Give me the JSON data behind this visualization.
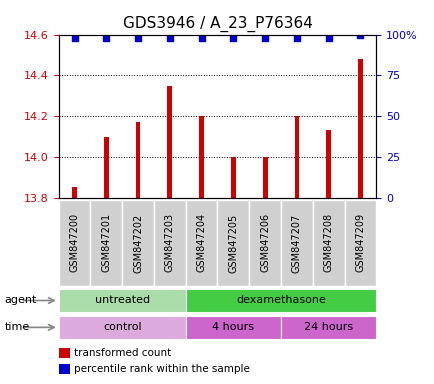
{
  "title": "GDS3946 / A_23_P76364",
  "samples": [
    "GSM847200",
    "GSM847201",
    "GSM847202",
    "GSM847203",
    "GSM847204",
    "GSM847205",
    "GSM847206",
    "GSM847207",
    "GSM847208",
    "GSM847209"
  ],
  "bar_values": [
    13.855,
    14.1,
    14.17,
    14.35,
    14.2,
    14.0,
    14.0,
    14.2,
    14.13,
    14.48
  ],
  "percentile_y": [
    98,
    98,
    98,
    98,
    98,
    98,
    98,
    98,
    98,
    100
  ],
  "bar_color": "#cc0000",
  "percentile_color": "#0000cc",
  "ylim_left": [
    13.8,
    14.6
  ],
  "ylim_right": [
    0,
    100
  ],
  "yticks_left": [
    13.8,
    14.0,
    14.2,
    14.4,
    14.6
  ],
  "yticks_right": [
    0,
    25,
    50,
    75,
    100
  ],
  "ytick_labels_right": [
    "0",
    "25",
    "50",
    "75",
    "100%"
  ],
  "agent_groups": [
    {
      "label": "untreated",
      "start": 0,
      "end": 4,
      "color": "#aaddaa"
    },
    {
      "label": "dexamethasone",
      "start": 4,
      "end": 10,
      "color": "#44cc44"
    }
  ],
  "time_groups": [
    {
      "label": "control",
      "start": 0,
      "end": 4,
      "color": "#ddaadd"
    },
    {
      "label": "4 hours",
      "start": 4,
      "end": 7,
      "color": "#cc66cc"
    },
    {
      "label": "24 hours",
      "start": 7,
      "end": 10,
      "color": "#cc66cc"
    }
  ],
  "legend_items": [
    {
      "color": "#cc0000",
      "label": "transformed count"
    },
    {
      "color": "#0000cc",
      "label": "percentile rank within the sample"
    }
  ],
  "agent_label": "agent",
  "time_label": "time",
  "axis_color_left": "#cc0000",
  "axis_color_right": "#0000cc",
  "bar_bottom": 13.8,
  "title_fontsize": 11,
  "tick_fontsize": 8,
  "sample_fontsize": 7,
  "row_fontsize": 8,
  "legend_fontsize": 7.5
}
